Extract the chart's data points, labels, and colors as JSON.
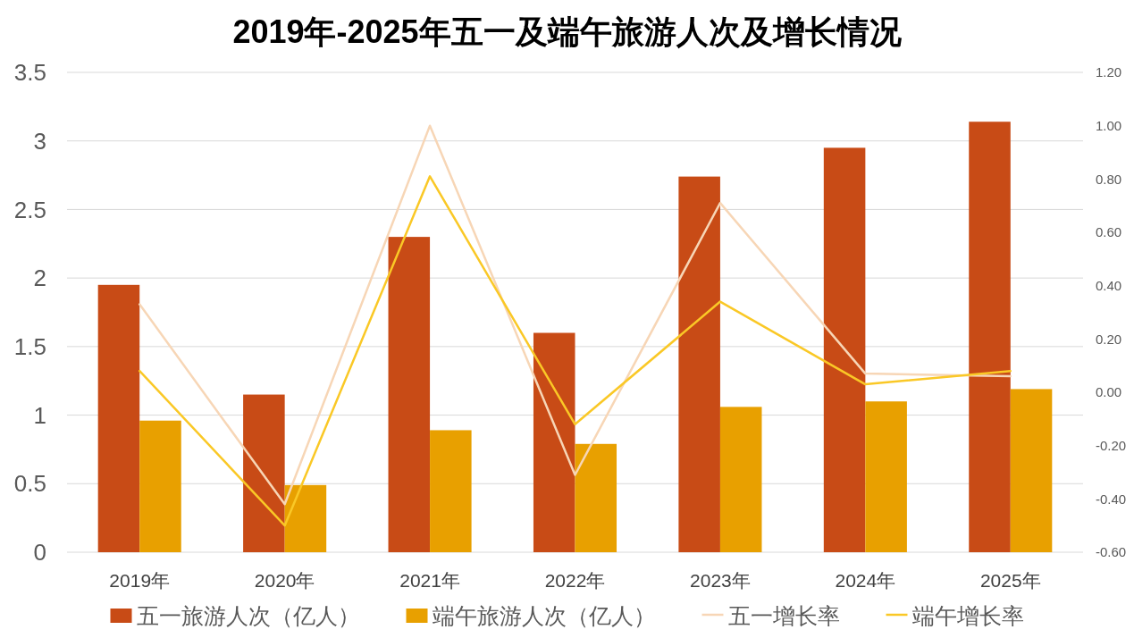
{
  "chart_data": {
    "type": "bar",
    "title": "2019年-2025年五一及端午旅游人次及增长情况",
    "categories": [
      "2019年",
      "2020年",
      "2021年",
      "2022年",
      "2023年",
      "2024年",
      "2025年"
    ],
    "series": [
      {
        "name": "五一旅游人次（亿人）",
        "color": "#c84b16",
        "values": [
          1.95,
          1.15,
          2.3,
          1.6,
          2.74,
          2.95,
          3.14
        ]
      },
      {
        "name": "端午旅游人次（亿人）",
        "color": "#e8a000",
        "values": [
          0.96,
          0.49,
          0.89,
          0.79,
          1.06,
          1.1,
          1.19
        ]
      },
      {
        "name": "五一增长率",
        "type": "line",
        "axis": "y2",
        "color": "#f7d6b6",
        "values": [
          0.33,
          -0.42,
          1.0,
          -0.31,
          0.71,
          0.07,
          0.06
        ]
      },
      {
        "name": "端午增长率",
        "type": "line",
        "axis": "y2",
        "color": "#fac826",
        "values": [
          0.08,
          -0.5,
          0.81,
          -0.12,
          0.34,
          0.03,
          0.08
        ]
      }
    ],
    "ylim": [
      0,
      3.5
    ],
    "yticks": [
      0,
      0.5,
      1,
      1.5,
      2,
      2.5,
      3,
      3.5
    ],
    "y2lim": [
      -0.6,
      1.2
    ],
    "y2ticks": [
      {
        "value": -0.6,
        "label": "-0.60"
      },
      {
        "value": -0.4,
        "label": "-0.40"
      },
      {
        "value": -0.2,
        "label": "-0.20"
      },
      {
        "value": 0,
        "label": "0.00"
      },
      {
        "value": 0.2,
        "label": "0.20"
      },
      {
        "value": 0.4,
        "label": "0.40"
      },
      {
        "value": 0.6,
        "label": "0.60"
      },
      {
        "value": 0.8,
        "label": "0.80"
      },
      {
        "value": 1,
        "label": "1.00"
      },
      {
        "value": 1.2,
        "label": "1.20"
      }
    ],
    "grid": "y",
    "legend": "bottom"
  }
}
